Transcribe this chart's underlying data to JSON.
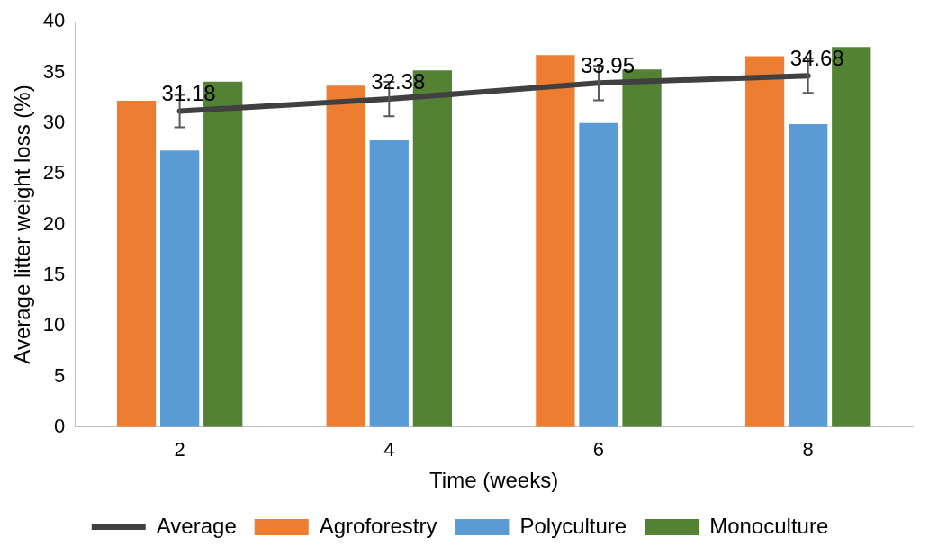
{
  "chart_data": {
    "type": "bar",
    "xlabel": "Time (weeks)",
    "ylabel": "Average litter weight loss (%)",
    "categories": [
      "2",
      "4",
      "6",
      "8"
    ],
    "series": [
      {
        "name": "Agroforestry",
        "color": "#ed7d31",
        "values": [
          32.2,
          33.7,
          36.7,
          36.6
        ]
      },
      {
        "name": "Polyculture",
        "color": "#5b9bd5",
        "values": [
          27.3,
          28.3,
          30.0,
          29.9
        ]
      },
      {
        "name": "Monoculture",
        "color": "#548235",
        "values": [
          34.1,
          35.2,
          35.3,
          37.5
        ]
      },
      {
        "name": "Average",
        "type": "line",
        "color": "#404040",
        "values": [
          31.18,
          32.38,
          33.95,
          34.68
        ],
        "errors": [
          1.6,
          1.7,
          1.7,
          1.7
        ],
        "value_labels": [
          "31.18",
          "32.38",
          "33.95",
          "34.68"
        ],
        "marker": "none"
      }
    ],
    "ylim": [
      0,
      40
    ],
    "yticks": [
      0,
      5,
      10,
      15,
      20,
      25,
      30,
      35,
      40
    ],
    "grid": false,
    "legend": "bottom"
  }
}
